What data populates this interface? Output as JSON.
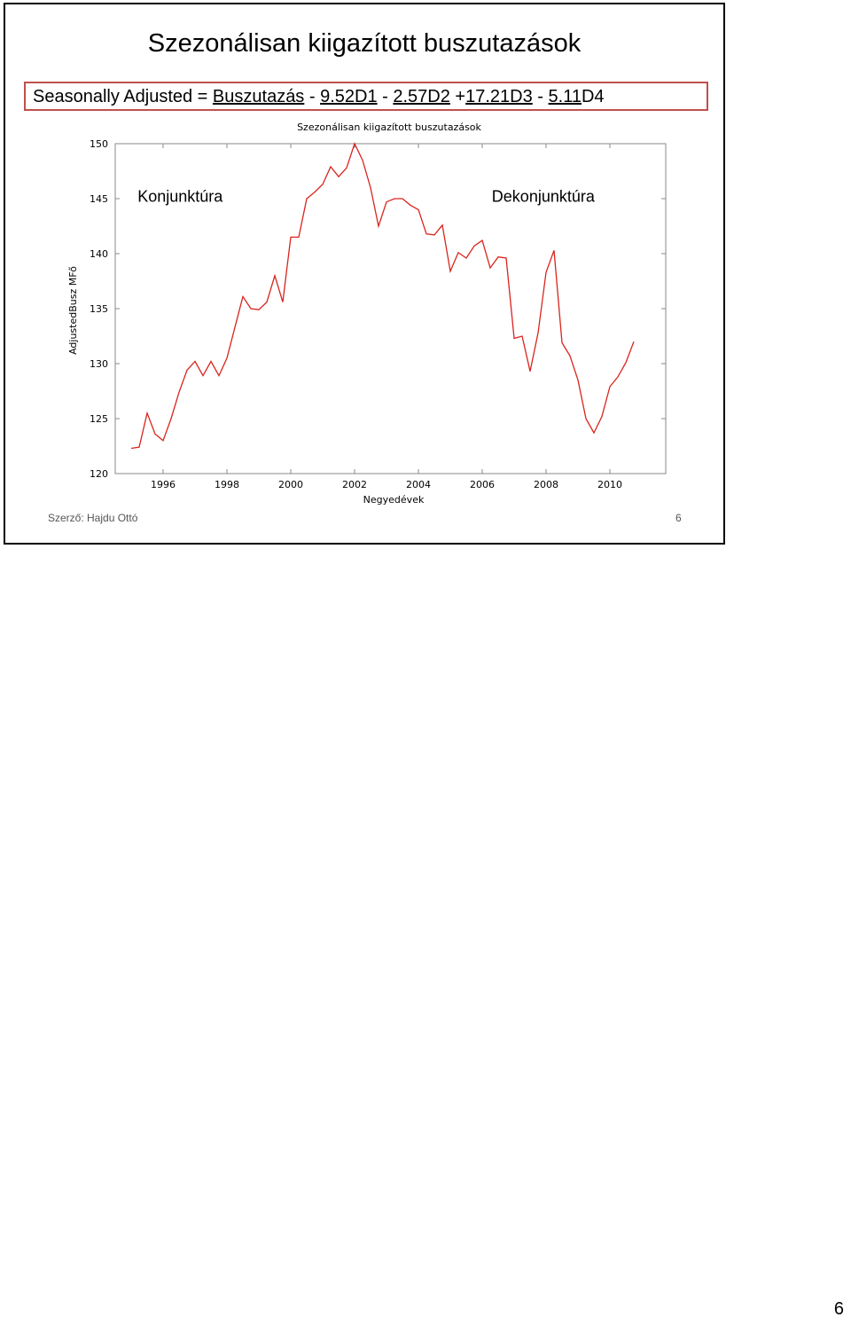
{
  "slide": {
    "title": "Szezonálisan kiigazított buszutazások",
    "formula": {
      "part1": "Seasonally Adjusted = ",
      "part2": "Buszutazás",
      "part3": " - ",
      "part4": "9.52D1",
      "part5": " - ",
      "part6": "2.57D2",
      "part7": " +",
      "part8": "17.21D3",
      "part9": " - ",
      "part10": "5.11",
      "part11": "D4"
    },
    "footer_author": "Szerző: Hajdu Ottó",
    "footer_number": "6"
  },
  "page_number": "6",
  "chart_data": {
    "type": "line",
    "title": "Szezonálisan kiigazított buszutazások",
    "xlabel": "Negyedévek",
    "ylabel": "AdjustedBusz MFő",
    "xlim": [
      1994.5,
      2011.75
    ],
    "ylim": [
      120,
      150
    ],
    "x_ticks": [
      "1996",
      "1998",
      "2000",
      "2002",
      "2004",
      "2006",
      "2008",
      "2010"
    ],
    "y_ticks": [
      "150",
      "145",
      "140",
      "135",
      "130",
      "125",
      "120"
    ],
    "grid": false,
    "line_color": "#d9241c",
    "annotations": [
      {
        "text": "Konjunktúra",
        "x": 1995.2,
        "y": 144.7
      },
      {
        "text": "Dekonjunktúra",
        "x": 2006.3,
        "y": 144.7
      }
    ],
    "series": [
      {
        "start_year": 1995,
        "step": 0.25,
        "values": [
          122.3,
          122.4,
          125.5,
          123.6,
          123.0,
          125.0,
          127.4,
          129.4,
          130.2,
          128.9,
          130.2,
          128.9,
          130.5,
          133.3,
          136.1,
          135.0,
          134.9,
          135.6,
          138.0,
          135.6,
          141.5,
          141.5,
          145.0,
          145.6,
          146.3,
          147.9,
          147.0,
          147.8,
          150.0,
          148.5,
          146.0,
          142.5,
          144.7,
          145.0,
          145.0,
          144.4,
          144.0,
          141.8,
          141.7,
          142.6,
          138.4,
          140.1,
          139.6,
          140.7,
          141.2,
          138.7,
          139.7,
          139.6,
          132.3,
          132.5,
          129.3,
          132.8,
          138.3,
          140.3,
          131.9,
          130.7,
          128.5,
          125.0,
          123.7,
          125.2,
          127.9,
          128.8,
          130.1,
          132.0
        ]
      }
    ]
  }
}
